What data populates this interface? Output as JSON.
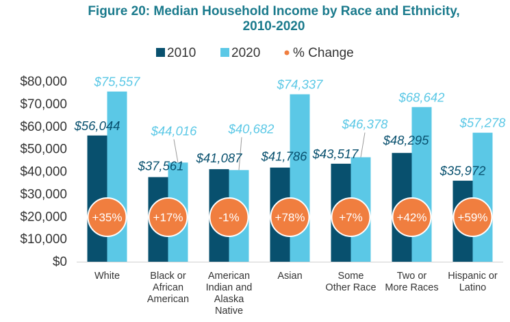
{
  "colors": {
    "title": "#1a7a8c",
    "series_2010": "#08506e",
    "series_2020": "#5bc8e6",
    "change": "#f07e3f",
    "axis": "#333333"
  },
  "chart_data": {
    "type": "bar",
    "title_lines": [
      "Figure 20: Median Household Income by Race and Ethnicity,",
      "2010-2020"
    ],
    "categories": [
      "White",
      "Black or African American",
      "American Indian and Alaska Native",
      "Asian",
      "Some Other Race",
      "Two or More Races",
      "Hispanic or Latino"
    ],
    "category_lines": [
      [
        "White"
      ],
      [
        "Black or",
        "African",
        "American"
      ],
      [
        "American",
        "Indian and",
        "Alaska",
        "Native"
      ],
      [
        "Asian"
      ],
      [
        "Some",
        "Other Race"
      ],
      [
        "Two or",
        "More Races"
      ],
      [
        "Hispanic or",
        "Latino"
      ]
    ],
    "series": [
      {
        "name": "2010",
        "values": [
          56044,
          37561,
          41087,
          41786,
          43517,
          48295,
          35972
        ],
        "labels": [
          "$56,044",
          "$37,561",
          "$41,087",
          "$41,786",
          "$43,517",
          "$48,295",
          "$35,972"
        ]
      },
      {
        "name": "2020",
        "values": [
          75557,
          44016,
          40682,
          74337,
          46378,
          68642,
          57278
        ],
        "labels": [
          "$75,557",
          "$44,016",
          "$40,682",
          "$74,337",
          "$46,378",
          "$68,642",
          "$57,278"
        ]
      }
    ],
    "change_name": "% Change",
    "change": [
      35,
      17,
      -1,
      78,
      7,
      42,
      59
    ],
    "change_labels": [
      "+35%",
      "+17%",
      "-1%",
      "+78%",
      "+7%",
      "+42%",
      "+59%"
    ],
    "ylim": [
      0,
      80000
    ],
    "yticks": [
      0,
      10000,
      20000,
      30000,
      40000,
      50000,
      60000,
      70000,
      80000
    ],
    "ytick_labels": [
      "$0",
      "$10,000",
      "$20,000",
      "$30,000",
      "$40,000",
      "$50,000",
      "$60,000",
      "$70,000",
      "$80,000"
    ],
    "legend_position": "top-center"
  }
}
